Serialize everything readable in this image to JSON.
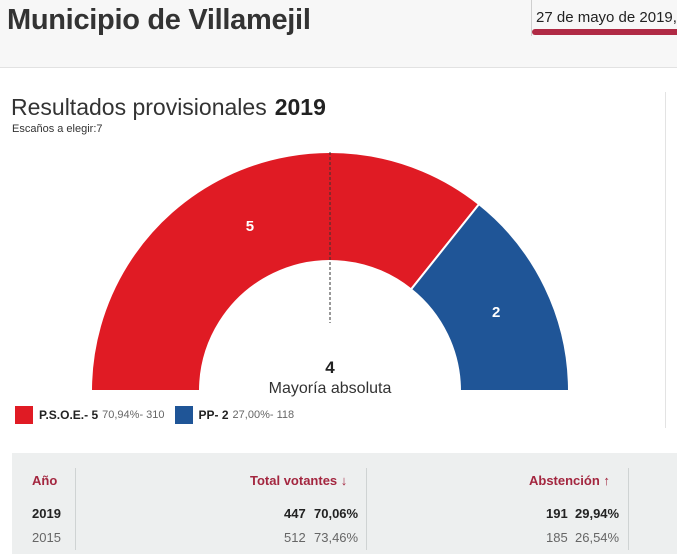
{
  "header": {
    "municipality": "Municipio de Villamejil",
    "date": "27 de mayo de 2019,"
  },
  "results": {
    "title": "Resultados provisionales",
    "year": "2019",
    "seats_label": "Escaños a elegir:7"
  },
  "chart_data": {
    "type": "pie",
    "variant": "semicircle",
    "title": "",
    "total_seats": 7,
    "majority": {
      "value": "4",
      "label": "Mayoría absoluta"
    },
    "series": [
      {
        "name": "P.S.O.E.",
        "seats": 5,
        "seats_label": "5",
        "pct": 70.94,
        "votes": 310,
        "color": "#e01b24"
      },
      {
        "name": "PP",
        "seats": 2,
        "seats_label": "2",
        "pct": 27.0,
        "votes": 118,
        "color": "#1f5597"
      }
    ]
  },
  "legend": [
    {
      "name": "P.S.O.E.- 5",
      "meta": "70,94%- 310",
      "color": "#e01b24"
    },
    {
      "name": "PP- 2",
      "meta": "27,00%- 118",
      "color": "#1f5597"
    }
  ],
  "table": {
    "headers": {
      "year": "Año",
      "total": "Total votantes ↓",
      "abstention": "Abstención ↑"
    },
    "rows": [
      {
        "year": "2019",
        "total_votes": "447",
        "total_pct": "70,06%",
        "abst_votes": "191",
        "abst_pct": "29,94%"
      },
      {
        "year": "2015",
        "total_votes": "512",
        "total_pct": "73,46%",
        "abst_votes": "185",
        "abst_pct": "26,54%"
      }
    ]
  }
}
